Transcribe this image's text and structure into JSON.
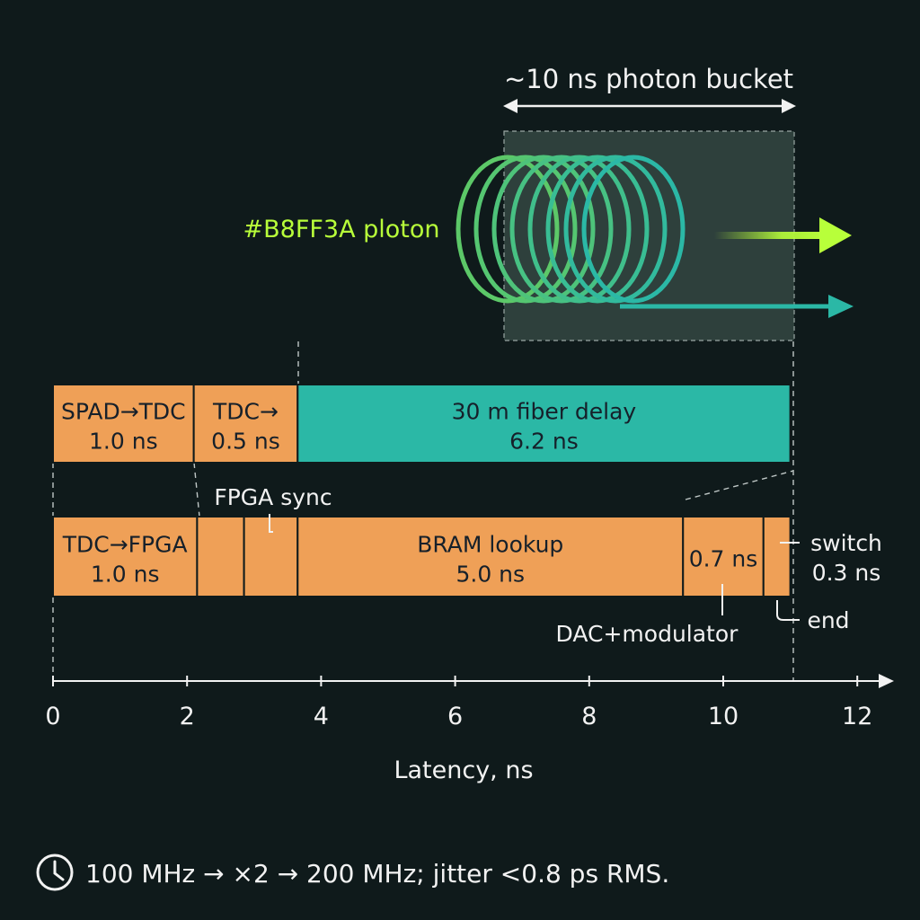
{
  "colors": {
    "background": "#0f1a1b",
    "orange": "#EFA057",
    "teal": "#2BB8A6",
    "lime": "#B8FF3A",
    "coil_green": "#52C36E",
    "text": "#F2F2F2",
    "dark_text": "#16202A",
    "bucket_fill": "#3A4E48"
  },
  "photon_bucket": {
    "label": "~10 ns photon bucket",
    "span_ns": [
      6.7,
      11.0
    ]
  },
  "photon_label": "#B8FF3A ploton",
  "xaxis": {
    "label": "Latency, ns",
    "ticks": [
      "0",
      "2",
      "4",
      "6",
      "8",
      "10",
      "12"
    ],
    "range": [
      0,
      12
    ]
  },
  "path_top": [
    {
      "start": 0.0,
      "end": 2.1,
      "label": "SPAD→TDC",
      "value": "1.0 ns",
      "kind": "orange"
    },
    {
      "start": 2.1,
      "end": 3.65,
      "label": "TDC→",
      "value": "0.5 ns",
      "kind": "orange"
    },
    {
      "start": 3.65,
      "end": 11.0,
      "label": "30 m fiber delay",
      "value": "6.2 ns",
      "kind": "teal"
    }
  ],
  "path_bottom": [
    {
      "start": 0.0,
      "end": 2.15,
      "label": "TDC→FPGA",
      "value": "1.0 ns",
      "kind": "orange"
    },
    {
      "start": 2.15,
      "end": 2.85,
      "label": "",
      "value": "",
      "kind": "orange"
    },
    {
      "start": 2.85,
      "end": 3.65,
      "label": "",
      "value": "",
      "kind": "orange"
    },
    {
      "start": 3.65,
      "end": 9.4,
      "label": "BRAM lookup",
      "value": "5.0 ns",
      "kind": "orange"
    },
    {
      "start": 9.4,
      "end": 10.6,
      "label": "",
      "value": "0.7 ns",
      "kind": "orange"
    },
    {
      "start": 10.6,
      "end": 11.0,
      "label": "",
      "value": "",
      "kind": "orange"
    }
  ],
  "callouts": {
    "fpga_sync": "FPGA sync",
    "dac_modulator": "DAC+modulator",
    "switch_label": "switch",
    "switch_value": "0.3 ns",
    "end_label": "end"
  },
  "footer": {
    "icon": "clock-icon",
    "text": "100 MHz → ×2 → 200 MHz; jitter <0.8 ps RMS."
  }
}
